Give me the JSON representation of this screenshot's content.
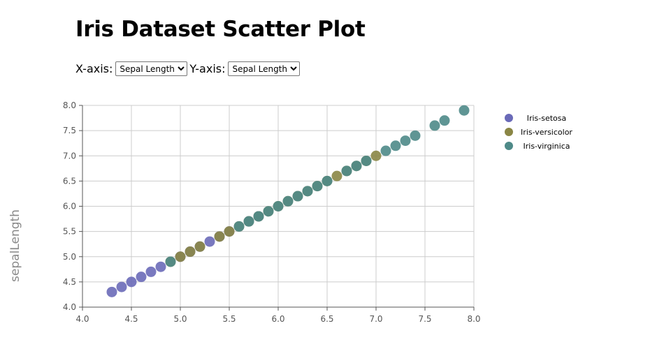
{
  "page": {
    "title": "Iris Dataset Scatter Plot"
  },
  "controls": {
    "x_label": "X-axis:",
    "y_label": "Y-axis:",
    "x_selected": "Sepal Length",
    "y_selected": "Sepal Length"
  },
  "colors": {
    "Iris-setosa": "#6a6ab8",
    "Iris-versicolor": "#8a8645",
    "Iris-virginica": "#4e8a88",
    "grid": "#cccccc",
    "axis": "#555555"
  },
  "chart_data": {
    "type": "scatter",
    "title": "Iris Dataset Scatter Plot",
    "xlabel": "",
    "ylabel": "sepalLength",
    "xlim": [
      4.0,
      8.0
    ],
    "ylim": [
      4.0,
      8.0
    ],
    "xticks": [
      "4.0",
      "4.5",
      "5.0",
      "5.5",
      "6.0",
      "6.5",
      "7.0",
      "7.5",
      "8.0"
    ],
    "yticks": [
      "4.0",
      "4.5",
      "5.0",
      "5.5",
      "6.0",
      "6.5",
      "7.0",
      "7.5",
      "8.0"
    ],
    "grid": true,
    "legend_position": "right",
    "series": [
      {
        "name": "Iris-setosa",
        "x": [
          4.3,
          4.4,
          4.5,
          4.6,
          4.7,
          4.8,
          5.0,
          5.1,
          5.2,
          5.3,
          5.4,
          5.5,
          5.7,
          5.8
        ],
        "y": [
          4.3,
          4.4,
          4.5,
          4.6,
          4.7,
          4.8,
          5.0,
          5.1,
          5.2,
          5.3,
          5.4,
          5.5,
          5.7,
          5.8
        ]
      },
      {
        "name": "Iris-versicolor",
        "x": [
          4.9,
          5.0,
          5.1,
          5.2,
          5.4,
          5.5,
          5.6,
          5.7,
          5.8,
          5.9,
          6.0,
          6.1,
          6.2,
          6.3,
          6.4,
          6.5,
          6.6,
          6.7,
          6.8,
          6.9,
          7.0
        ],
        "y": [
          4.9,
          5.0,
          5.1,
          5.2,
          5.4,
          5.5,
          5.6,
          5.7,
          5.8,
          5.9,
          6.0,
          6.1,
          6.2,
          6.3,
          6.4,
          6.5,
          6.6,
          6.7,
          6.8,
          6.9,
          7.0
        ]
      },
      {
        "name": "Iris-virginica",
        "x": [
          4.9,
          5.6,
          5.7,
          5.8,
          5.9,
          6.0,
          6.1,
          6.2,
          6.3,
          6.4,
          6.5,
          6.7,
          6.8,
          6.9,
          7.1,
          7.2,
          7.3,
          7.4,
          7.6,
          7.7,
          7.9
        ],
        "y": [
          4.9,
          5.6,
          5.7,
          5.8,
          5.9,
          6.0,
          6.1,
          6.2,
          6.3,
          6.4,
          6.5,
          6.7,
          6.8,
          6.9,
          7.1,
          7.2,
          7.3,
          7.4,
          7.6,
          7.7,
          7.9
        ]
      }
    ]
  }
}
